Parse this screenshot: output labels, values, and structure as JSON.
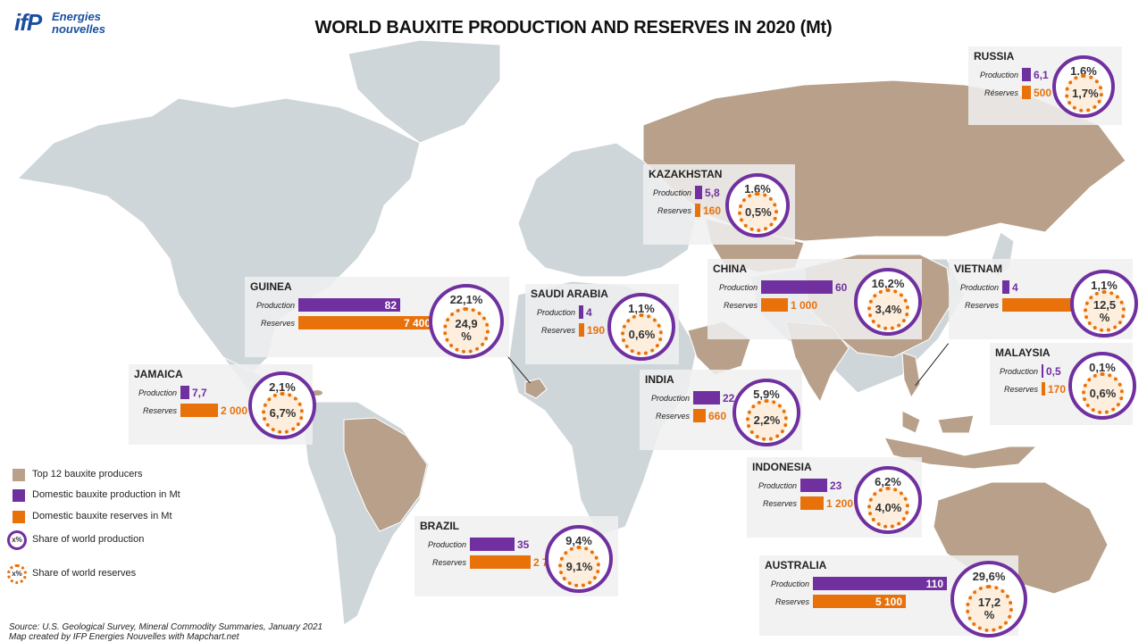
{
  "title": "WORLD BAUXITE PRODUCTION AND RESERVES IN 2020 (Mt)",
  "logo": {
    "mark": "ifP",
    "line1": "Energies",
    "line2": "nouvelles"
  },
  "colors": {
    "production": "#7030a0",
    "reserves": "#e8710a",
    "producer_country": "#b8a08a",
    "other_land": "#cfd6d9"
  },
  "labels": {
    "production": "Production",
    "reserves": "Reserves",
    "reserves_alt": "Réserves"
  },
  "countries": [
    {
      "name": "RUSSIA",
      "production": "6,1",
      "reserves": "500",
      "share_production": "1,6%",
      "share_reserves": "1,7%"
    },
    {
      "name": "KAZAKHSTAN",
      "production": "5,8",
      "reserves": "160",
      "share_production": "1,6%",
      "share_reserves": "0,5%"
    },
    {
      "name": "CHINA",
      "production": "60",
      "reserves": "1 000",
      "share_production": "16,2%",
      "share_reserves": "3,4%"
    },
    {
      "name": "VIETNAM",
      "production": "4",
      "reserves": "3 700",
      "share_production": "1,1%",
      "share_reserves": "12,5 %"
    },
    {
      "name": "MALAYSIA",
      "production": "0,5",
      "reserves": "170",
      "share_production": "0,1%",
      "share_reserves": "0,6%"
    },
    {
      "name": "SAUDI ARABIA",
      "production": "4",
      "reserves": "190",
      "share_production": "1,1%",
      "share_reserves": "0,6%"
    },
    {
      "name": "GUINEA",
      "production": "82",
      "reserves": "7 400",
      "share_production": "22,1%",
      "share_reserves": "24,9 %"
    },
    {
      "name": "JAMAICA",
      "production": "7,7",
      "reserves": "2 000",
      "share_production": "2,1%",
      "share_reserves": "6,7%"
    },
    {
      "name": "INDIA",
      "production": "22",
      "reserves": "660",
      "share_production": "5,9%",
      "share_reserves": "2,2%"
    },
    {
      "name": "INDONESIA",
      "production": "23",
      "reserves": "1 200",
      "share_production": "6,2%",
      "share_reserves": "4,0%"
    },
    {
      "name": "BRAZIL",
      "production": "35",
      "reserves": "2 700",
      "share_production": "9,4%",
      "share_reserves": "9,1%"
    },
    {
      "name": "AUSTRALIA",
      "production": "110",
      "reserves": "5 100",
      "share_production": "29,6%",
      "share_reserves": "17,2 %"
    }
  ],
  "legend": [
    {
      "text": "Top 12 bauxite producers",
      "marker": "square-brown"
    },
    {
      "text": "Domestic bauxite production in Mt",
      "marker": "square-purple"
    },
    {
      "text": "Domestic bauxite reserves in Mt",
      "marker": "square-orange"
    },
    {
      "text": "Share of world production",
      "marker": "ring-purple",
      "symbol": "x%"
    },
    {
      "text": "Share of world reserves",
      "marker": "ring-orange-dotted",
      "symbol": "x%"
    }
  ],
  "source": [
    "Source: U.S. Geological Survey, Mineral Commodity Summaries, January 2021",
    "Map created by IFP Energies Nouvelles with Mapchart.net"
  ]
}
